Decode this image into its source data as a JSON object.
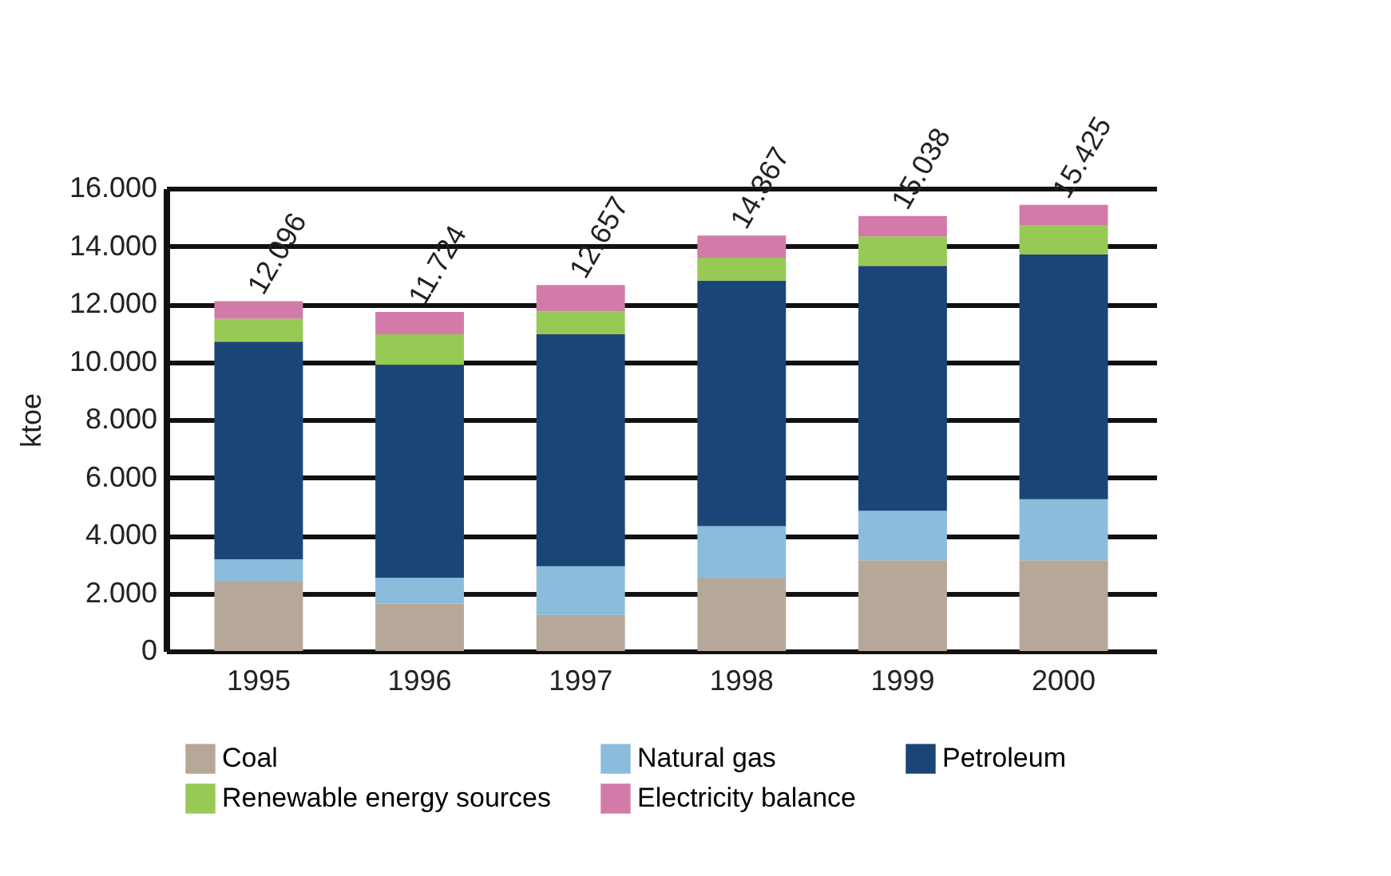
{
  "chart_data": {
    "type": "bar",
    "stacked": true,
    "ylabel": "ktoe",
    "categories": [
      "1995",
      "1996",
      "1997",
      "1998",
      "1999",
      "2000"
    ],
    "series": [
      {
        "name": "Coal",
        "color": "#b5a898",
        "values": [
          2400,
          1640,
          1250,
          2510,
          3140,
          3140
        ]
      },
      {
        "name": "Natural gas",
        "color": "#8bbcdc",
        "values": [
          770,
          890,
          1680,
          1810,
          1710,
          2110
        ]
      },
      {
        "name": "Petroleum",
        "color": "#1b4577",
        "values": [
          7530,
          7370,
          8020,
          8490,
          8470,
          8460
        ]
      },
      {
        "name": "Renewable energy sources",
        "color": "#97c955",
        "values": [
          790,
          1050,
          790,
          790,
          1020,
          1020
        ]
      },
      {
        "name": "Electricity balance",
        "color": "#d27ba9",
        "values": [
          606,
          774,
          917,
          767,
          698,
          695
        ]
      }
    ],
    "totals": [
      "12.096",
      "11.724",
      "12.657",
      "14.367",
      "15.038",
      "15.425"
    ],
    "ylim": [
      0,
      16000
    ],
    "yticks": [
      0,
      {
        "value": 2000,
        "label": "2.000"
      },
      {
        "value": 4000,
        "label": "4.000"
      },
      {
        "value": 6000,
        "label": "6.000"
      },
      {
        "value": 8000,
        "label": "8.000"
      },
      {
        "value": 10000,
        "label": "10.000"
      },
      {
        "value": 12000,
        "label": "12.000"
      },
      {
        "value": 14000,
        "label": "14.000"
      },
      {
        "value": 16000,
        "label": "16.000"
      }
    ],
    "grid": "y",
    "legend": "bottom"
  }
}
